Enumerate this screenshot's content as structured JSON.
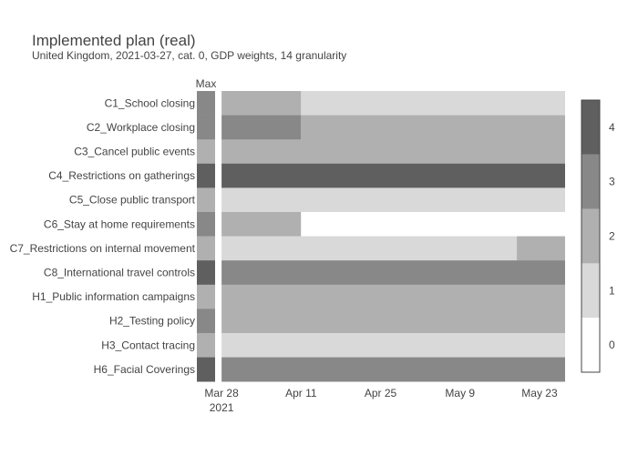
{
  "chart_data": {
    "type": "heatmap",
    "title": "Implemented plan (real)",
    "subtitle": "United Kingdom, 2021-03-27, cat. 0, GDP weights, 14 granularity",
    "max_column_label": "Max",
    "x_ticks": [
      "Mar 28",
      "Apr 11",
      "Apr 25",
      "May 9",
      "May 23"
    ],
    "x_tick_days": [
      1,
      15,
      29,
      43,
      57
    ],
    "x_year_label": "2021",
    "x_range_days": [
      0.5,
      61.5
    ],
    "colorscale": {
      "ticks": [
        "0",
        "1",
        "2",
        "3",
        "4"
      ],
      "zmin": -0.5,
      "zmax": 4.5,
      "colors": [
        "#ffffff",
        "#d9d9d9",
        "#b0b0b0",
        "#888888",
        "#5f5f5f"
      ]
    },
    "rows": [
      {
        "label": "C1_School closing",
        "max": 3,
        "segments": [
          {
            "start": 1,
            "end": 15,
            "value": 2
          },
          {
            "start": 15,
            "end": 61.5,
            "value": 1
          }
        ]
      },
      {
        "label": "C2_Workplace closing",
        "max": 3,
        "segments": [
          {
            "start": 1,
            "end": 15,
            "value": 3
          },
          {
            "start": 15,
            "end": 61.5,
            "value": 2
          }
        ]
      },
      {
        "label": "C3_Cancel public events",
        "max": 2,
        "segments": [
          {
            "start": 1,
            "end": 61.5,
            "value": 2
          }
        ]
      },
      {
        "label": "C4_Restrictions on gatherings",
        "max": 4,
        "segments": [
          {
            "start": 1,
            "end": 61.5,
            "value": 4
          }
        ]
      },
      {
        "label": "C5_Close public transport",
        "max": 2,
        "segments": [
          {
            "start": 1,
            "end": 61.5,
            "value": 1
          }
        ]
      },
      {
        "label": "C6_Stay at home requirements",
        "max": 3,
        "segments": [
          {
            "start": 1,
            "end": 15,
            "value": 2
          },
          {
            "start": 15,
            "end": 61.5,
            "value": 0
          }
        ]
      },
      {
        "label": "C7_Restrictions on internal movement",
        "max": 2,
        "segments": [
          {
            "start": 1,
            "end": 53,
            "value": 1
          },
          {
            "start": 53,
            "end": 61.5,
            "value": 2
          }
        ]
      },
      {
        "label": "C8_International travel controls",
        "max": 4,
        "segments": [
          {
            "start": 1,
            "end": 61.5,
            "value": 3
          }
        ]
      },
      {
        "label": "H1_Public information campaigns",
        "max": 2,
        "segments": [
          {
            "start": 1,
            "end": 61.5,
            "value": 2
          }
        ]
      },
      {
        "label": "H2_Testing policy",
        "max": 3,
        "segments": [
          {
            "start": 1,
            "end": 61.5,
            "value": 2
          }
        ]
      },
      {
        "label": "H3_Contact tracing",
        "max": 2,
        "segments": [
          {
            "start": 1,
            "end": 61.5,
            "value": 1
          }
        ]
      },
      {
        "label": "H6_Facial Coverings",
        "max": 4,
        "segments": [
          {
            "start": 1,
            "end": 61.5,
            "value": 3
          }
        ]
      }
    ]
  }
}
